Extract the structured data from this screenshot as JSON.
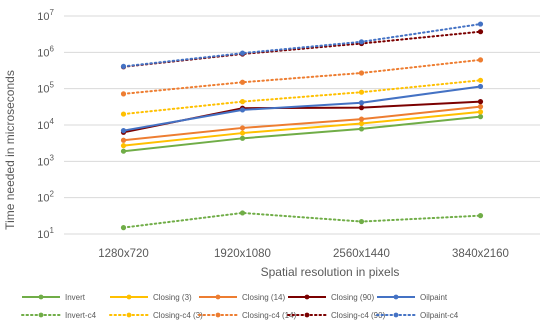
{
  "chart_data": {
    "type": "line",
    "title": "",
    "xlabel": "Spatial resolution in pixels",
    "ylabel": "Time needed in microseconds",
    "categories": [
      "1280x720",
      "1920x1080",
      "2560x1440",
      "3840x2160"
    ],
    "y_scale": "log",
    "ylim": [
      10,
      10000000
    ],
    "y_ticks": [
      {
        "value": 10,
        "base": "10",
        "exp": "1"
      },
      {
        "value": 100,
        "base": "10",
        "exp": "2"
      },
      {
        "value": 1000,
        "base": "10",
        "exp": "3"
      },
      {
        "value": 10000,
        "base": "10",
        "exp": "4"
      },
      {
        "value": 100000,
        "base": "10",
        "exp": "5"
      },
      {
        "value": 1000000,
        "base": "10",
        "exp": "6"
      },
      {
        "value": 10000000,
        "base": "10",
        "exp": "7"
      }
    ],
    "grid": true,
    "legend_position": "bottom",
    "series": [
      {
        "name": "Invert",
        "color": "#70AD47",
        "dashed": false,
        "values": [
          1900,
          4300,
          7800,
          17000
        ]
      },
      {
        "name": "Closing (3)",
        "color": "#FFC000",
        "dashed": false,
        "values": [
          2700,
          6000,
          11000,
          23000
        ]
      },
      {
        "name": "Closing (14)",
        "color": "#ED7D31",
        "dashed": false,
        "values": [
          3800,
          8300,
          14500,
          32000
        ]
      },
      {
        "name": "Closing (90)",
        "color": "#7B0000",
        "dashed": false,
        "values": [
          6300,
          29000,
          30000,
          44000
        ]
      },
      {
        "name": "Oilpaint",
        "color": "#4472C4",
        "dashed": false,
        "values": [
          7000,
          26000,
          41000,
          115000
        ]
      },
      {
        "name": "Invert-c4",
        "color": "#70AD47",
        "dashed": true,
        "values": [
          15,
          38,
          22,
          32
        ]
      },
      {
        "name": "Closing-c4 (3)",
        "color": "#FFC000",
        "dashed": true,
        "values": [
          20000,
          44000,
          80000,
          170000
        ]
      },
      {
        "name": "Closing-c4 (14)",
        "color": "#ED7D31",
        "dashed": true,
        "values": [
          72000,
          150000,
          270000,
          620000
        ]
      },
      {
        "name": "Closing-c4 (90)",
        "color": "#7B0000",
        "dashed": true,
        "values": [
          400000,
          900000,
          1750000,
          3700000
        ]
      },
      {
        "name": "Oilpaint-c4",
        "color": "#4472C4",
        "dashed": true,
        "values": [
          410000,
          950000,
          1950000,
          6000000
        ]
      }
    ]
  }
}
